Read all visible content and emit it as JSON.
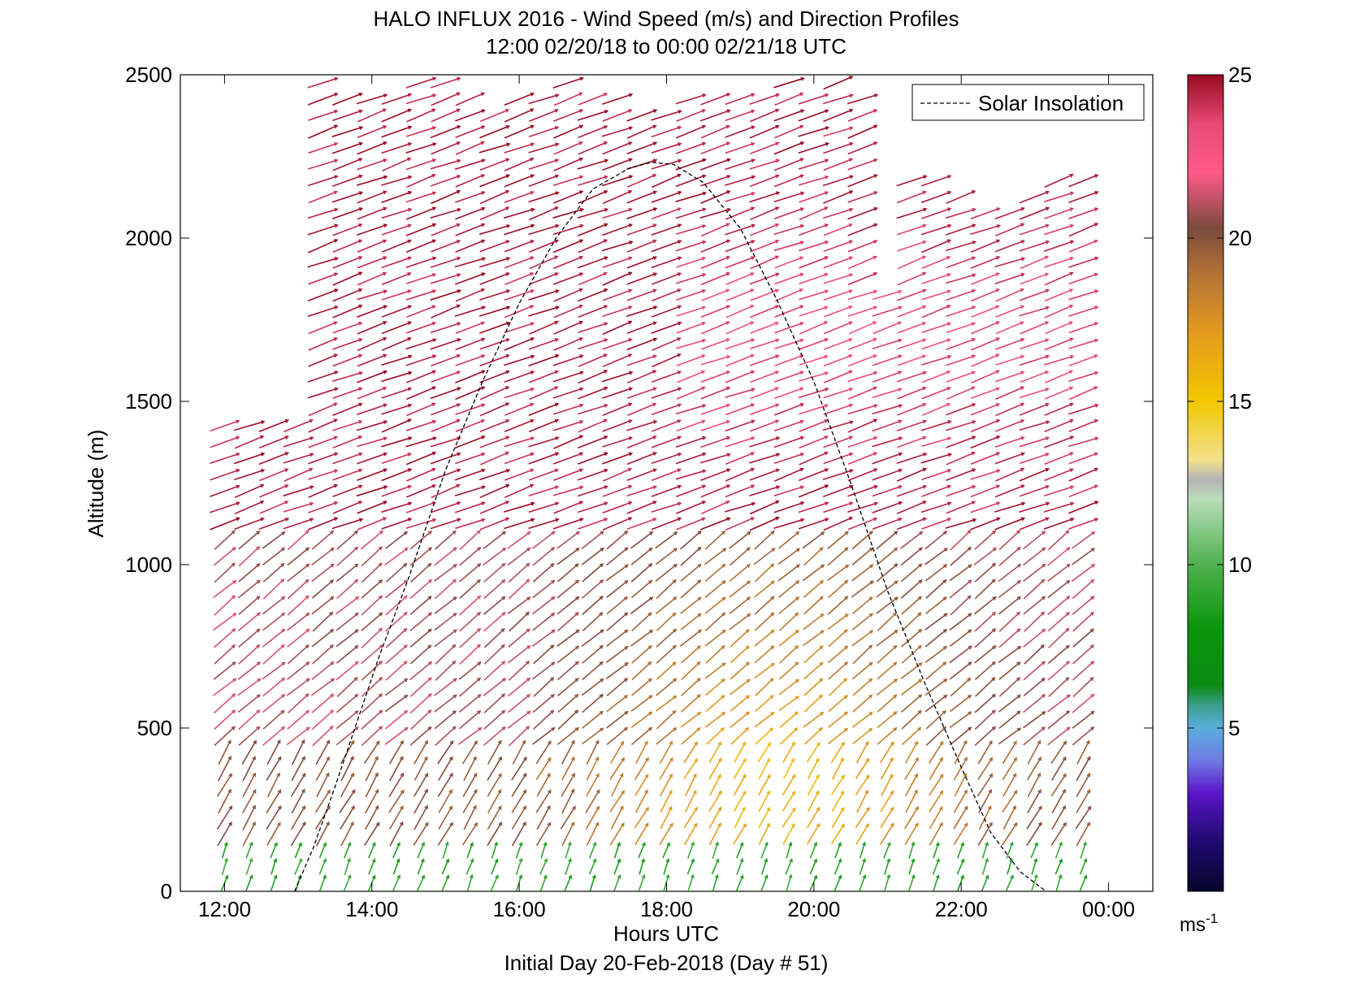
{
  "chart_data": {
    "type": "vector-field",
    "title": "HALO INFLUX 2016 - Wind Speed (m/s) and Direction Profiles",
    "subtitle": "12:00 02/20/18 to 00:00 02/21/18  UTC",
    "xlabel": "Hours UTC",
    "xlabel2": "Initial Day 20-Feb-2018 (Day # 51)",
    "ylabel": "Altitude (m)",
    "xlim": [
      11.4,
      24.6
    ],
    "ylim": [
      0,
      2500
    ],
    "x_ticks": [
      {
        "value": 12,
        "label": "12:00"
      },
      {
        "value": 14,
        "label": "14:00"
      },
      {
        "value": 16,
        "label": "16:00"
      },
      {
        "value": 18,
        "label": "18:00"
      },
      {
        "value": 20,
        "label": "20:00"
      },
      {
        "value": 22,
        "label": "22:00"
      },
      {
        "value": 24,
        "label": "00:00"
      }
    ],
    "y_ticks": [
      {
        "value": 0,
        "label": "0"
      },
      {
        "value": 500,
        "label": "500"
      },
      {
        "value": 1000,
        "label": "1000"
      },
      {
        "value": 1500,
        "label": "1500"
      },
      {
        "value": 2000,
        "label": "2000"
      },
      {
        "value": 2500,
        "label": "2500"
      }
    ],
    "legend": {
      "placement": "top-right",
      "entries": [
        {
          "label": "Solar Insolation",
          "style": "dashed",
          "color": "#000000"
        }
      ]
    },
    "colorbar": {
      "range": [
        0,
        25
      ],
      "unit_label": "ms",
      "unit_exponent": "-1",
      "ticks": [
        {
          "value": 5,
          "label": "5"
        },
        {
          "value": 10,
          "label": "10"
        },
        {
          "value": 15,
          "label": "15"
        },
        {
          "value": 20,
          "label": "20"
        },
        {
          "value": 25,
          "label": "25"
        }
      ],
      "stops": [
        {
          "value": 0,
          "color": "#05052a"
        },
        {
          "value": 1.5,
          "color": "#200a70"
        },
        {
          "value": 3,
          "color": "#5a14c8"
        },
        {
          "value": 4,
          "color": "#6f7ae6"
        },
        {
          "value": 5,
          "color": "#5aaedc"
        },
        {
          "value": 5.7,
          "color": "#3d9e8c"
        },
        {
          "value": 6.3,
          "color": "#0a8a14"
        },
        {
          "value": 8,
          "color": "#08960a"
        },
        {
          "value": 10,
          "color": "#4eb04e"
        },
        {
          "value": 12,
          "color": "#b9ddb9"
        },
        {
          "value": 12.6,
          "color": "#b4b4b4"
        },
        {
          "value": 13.2,
          "color": "#f2e08c"
        },
        {
          "value": 15,
          "color": "#f2c800"
        },
        {
          "value": 17,
          "color": "#e59d1c"
        },
        {
          "value": 19,
          "color": "#b07038"
        },
        {
          "value": 20.3,
          "color": "#7b4a3c"
        },
        {
          "value": 22,
          "color": "#ff5a88"
        },
        {
          "value": 23.5,
          "color": "#e84a75"
        },
        {
          "value": 25,
          "color": "#96091f"
        }
      ]
    },
    "solar_insolation": {
      "x": [
        12.95,
        13.2,
        13.5,
        13.8,
        14.1,
        14.5,
        15.0,
        15.5,
        16.0,
        16.5,
        17.0,
        17.5,
        17.8,
        18.1,
        18.5,
        19.0,
        19.5,
        20.0,
        20.5,
        21.0,
        21.5,
        22.0,
        22.4,
        22.8,
        23.15
      ],
      "y": [
        0,
        130,
        320,
        520,
        720,
        960,
        1290,
        1560,
        1800,
        2000,
        2150,
        2215,
        2232,
        2225,
        2170,
        2030,
        1810,
        1560,
        1250,
        920,
        640,
        380,
        180,
        60,
        0
      ]
    },
    "wind_profiles": {
      "time_start": 12.0,
      "time_end": 23.83,
      "time_step": 0.333,
      "altitude_step": 50,
      "note_layers": [
        {
          "top_m": 150,
          "speed_ms": 9,
          "direction_from_deg": 200
        },
        {
          "top_m": 450,
          "speed_ms": 16,
          "direction_from_deg": 210
        },
        {
          "top_m": 1100,
          "speed_ms": 21,
          "direction_from_deg": 230
        },
        {
          "top_m": 2500,
          "speed_ms": 24.5,
          "direction_from_deg": 250
        }
      ]
    }
  }
}
